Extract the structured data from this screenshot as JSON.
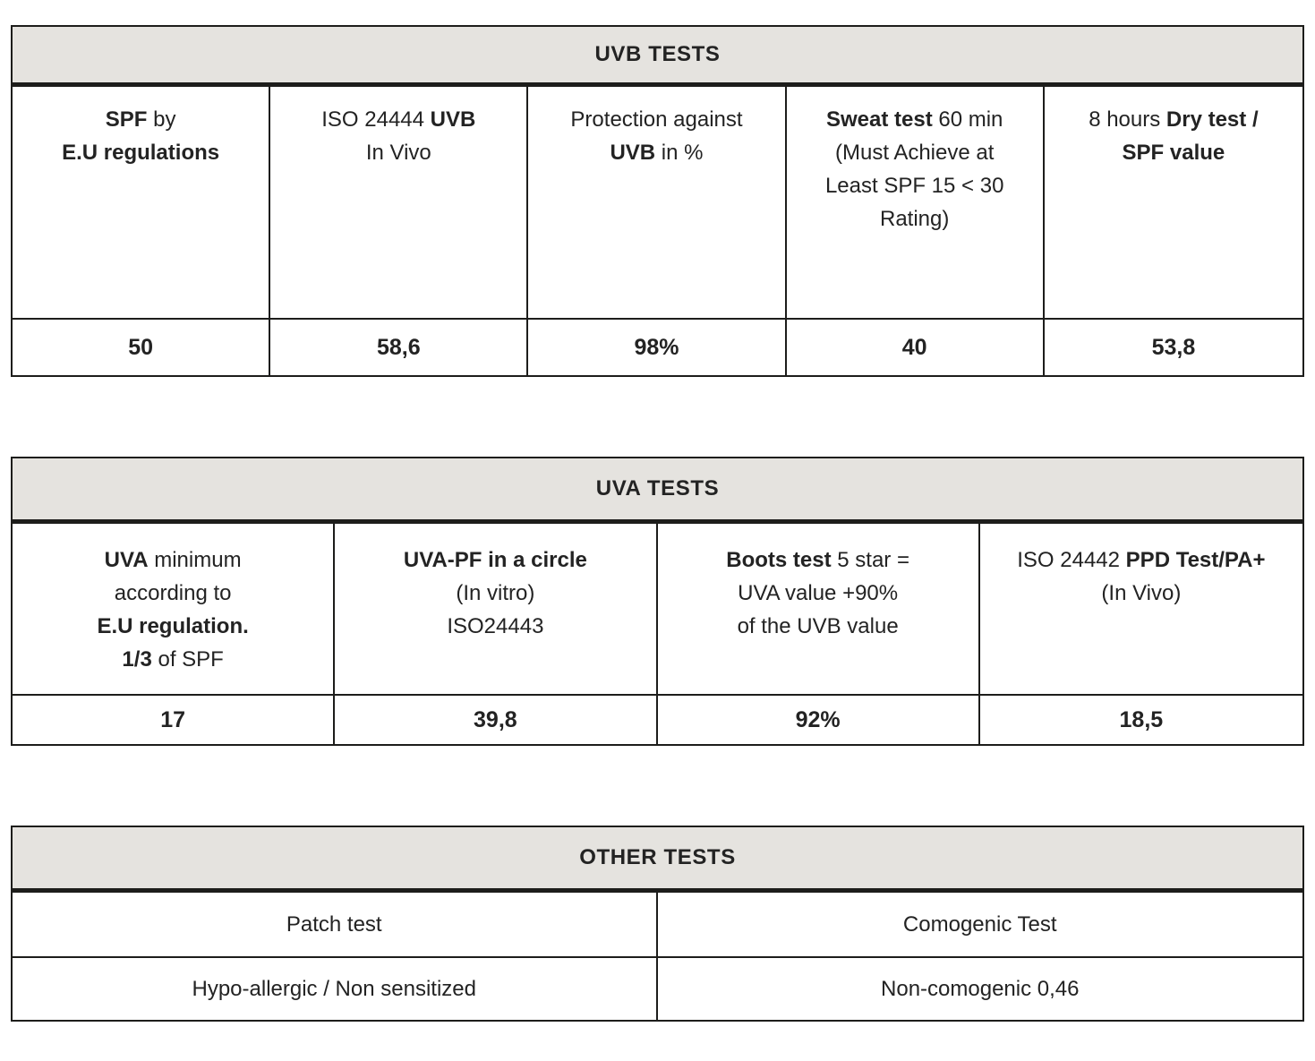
{
  "page": {
    "background": "#ffffff",
    "text_color": "#232323",
    "band_gray": "#e5e3df",
    "border_color": "#1d1d1b"
  },
  "uvb_table": {
    "title": "UVB TESTS",
    "headers": [
      [
        {
          "t": "SPF",
          "b": true
        },
        {
          "t": " by"
        },
        {
          "br": true
        },
        {
          "t": "E.U regulations",
          "b": true
        }
      ],
      [
        {
          "t": "ISO 24444 "
        },
        {
          "t": "UVB",
          "b": true
        },
        {
          "br": true
        },
        {
          "t": "In Vivo"
        }
      ],
      [
        {
          "t": "Protection against"
        },
        {
          "br": true
        },
        {
          "t": "UVB",
          "b": true
        },
        {
          "t": " in %"
        }
      ],
      [
        {
          "t": "Sweat test",
          "b": true
        },
        {
          "t": " 60 min"
        },
        {
          "br": true
        },
        {
          "t": "(Must Achieve at"
        },
        {
          "br": true
        },
        {
          "t": "Least SPF 15 < 30"
        },
        {
          "br": true
        },
        {
          "t": "Rating)"
        }
      ],
      [
        {
          "t": "8 hours "
        },
        {
          "t": "Dry test /",
          "b": true
        },
        {
          "br": true
        },
        {
          "t": "SPF value",
          "b": true
        }
      ]
    ],
    "values": [
      "50",
      "58,6",
      "98%",
      "40",
      "53,8"
    ]
  },
  "uva_table": {
    "title": "UVA TESTS",
    "headers": [
      [
        {
          "t": "UVA",
          "b": true
        },
        {
          "t": " minimum"
        },
        {
          "br": true
        },
        {
          "t": "according to"
        },
        {
          "br": true
        },
        {
          "t": "E.U regulation.",
          "b": true
        },
        {
          "br": true
        },
        {
          "t": "1/3",
          "b": true
        },
        {
          "t": " of SPF"
        }
      ],
      [
        {
          "t": "UVA-PF in a circle",
          "b": true
        },
        {
          "br": true
        },
        {
          "t": "(In vitro)"
        },
        {
          "br": true
        },
        {
          "t": "ISO24443"
        }
      ],
      [
        {
          "t": "Boots test",
          "b": true
        },
        {
          "t": " 5 star ="
        },
        {
          "br": true
        },
        {
          "t": "UVA value +90%"
        },
        {
          "br": true
        },
        {
          "t": "of the UVB value"
        }
      ],
      [
        {
          "t": "ISO 24442 "
        },
        {
          "t": "PPD Test/PA+",
          "b": true
        },
        {
          "br": true
        },
        {
          "t": "(In Vivo)"
        }
      ]
    ],
    "values": [
      "17",
      "39,8",
      "92%",
      "18,5"
    ]
  },
  "other_table": {
    "title": "OTHER TESTS",
    "rows": [
      [
        "Patch test",
        "Comogenic Test"
      ],
      [
        "Hypo-allergic / Non sensitized",
        "Non-comogenic 0,46"
      ]
    ]
  }
}
